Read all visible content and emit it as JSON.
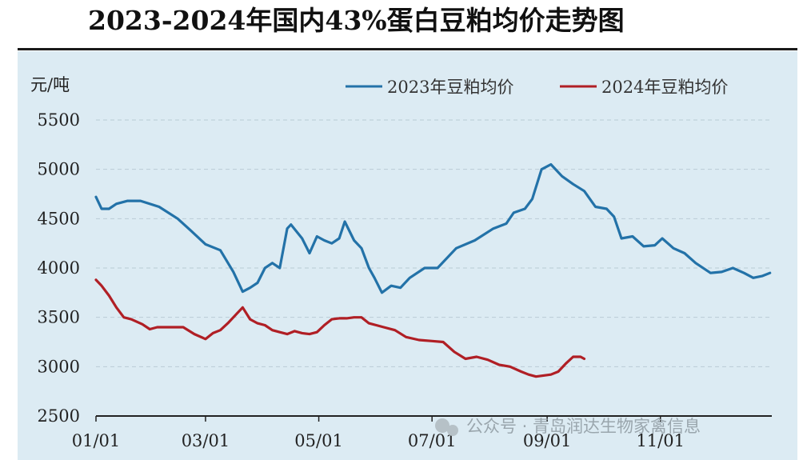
{
  "title": "2023-2024年国内43%蛋白豆粕均价走势图",
  "watermark": "公众号 · 青岛润达生物家禽信息",
  "chart_data": {
    "type": "line",
    "title": "2023-2024年国内43%蛋白豆粕均价走势图",
    "ylabel": "元/吨",
    "xlabel": "",
    "ylim": [
      2500,
      5500
    ],
    "yticks": [
      5500,
      5000,
      4500,
      4000,
      3500,
      3000,
      2500
    ],
    "xticks": [
      "01/01",
      "03/01",
      "05/01",
      "07/01",
      "09/01",
      "11/01"
    ],
    "grid": true,
    "legend_position": "top-right",
    "x_unit": "day of year",
    "series": [
      {
        "name": "2023年豆粕均价",
        "color": "#2372a8",
        "x": [
          1,
          4,
          8,
          12,
          18,
          25,
          35,
          45,
          52,
          60,
          68,
          75,
          80,
          84,
          88,
          92,
          96,
          100,
          104,
          106,
          112,
          116,
          120,
          124,
          128,
          132,
          135,
          140,
          144,
          148,
          151,
          155,
          160,
          165,
          170,
          178,
          185,
          195,
          205,
          215,
          222,
          226,
          232,
          236,
          241,
          246,
          252,
          258,
          264,
          270,
          276,
          280,
          284,
          290,
          296,
          302,
          306,
          312,
          318,
          324,
          332,
          338,
          344,
          350,
          355,
          360,
          364
        ],
        "y": [
          4720,
          4600,
          4600,
          4650,
          4680,
          4680,
          4620,
          4500,
          4380,
          4240,
          4180,
          3960,
          3760,
          3800,
          3850,
          4000,
          4050,
          4000,
          4400,
          4440,
          4300,
          4150,
          4320,
          4280,
          4250,
          4300,
          4470,
          4280,
          4200,
          4000,
          3900,
          3750,
          3820,
          3800,
          3900,
          4000,
          4000,
          4200,
          4280,
          4400,
          4450,
          4560,
          4600,
          4700,
          5000,
          5050,
          4930,
          4850,
          4780,
          4620,
          4600,
          4520,
          4300,
          4320,
          4220,
          4230,
          4300,
          4200,
          4150,
          4050,
          3950,
          3960,
          4000,
          3950,
          3900,
          3920,
          3950
        ]
      },
      {
        "name": "2024年豆粕均价",
        "color": "#b01f25",
        "x": [
          1,
          4,
          8,
          12,
          16,
          20,
          26,
          30,
          34,
          40,
          48,
          54,
          60,
          64,
          68,
          72,
          76,
          80,
          84,
          88,
          92,
          96,
          100,
          104,
          108,
          112,
          116,
          120,
          124,
          128,
          132,
          136,
          140,
          144,
          148,
          152,
          156,
          162,
          168,
          175,
          182,
          188,
          194,
          200,
          206,
          212,
          218,
          224,
          230,
          234,
          238,
          242,
          246,
          250,
          254,
          258,
          262,
          264
        ],
        "y": [
          3880,
          3820,
          3720,
          3600,
          3500,
          3480,
          3430,
          3380,
          3400,
          3400,
          3400,
          3330,
          3280,
          3340,
          3370,
          3440,
          3520,
          3600,
          3480,
          3440,
          3420,
          3370,
          3350,
          3330,
          3360,
          3340,
          3330,
          3350,
          3420,
          3480,
          3490,
          3490,
          3500,
          3500,
          3440,
          3420,
          3400,
          3370,
          3300,
          3270,
          3260,
          3250,
          3150,
          3080,
          3100,
          3070,
          3020,
          3000,
          2950,
          2920,
          2900,
          2910,
          2920,
          2950,
          3030,
          3100,
          3100,
          3080
        ]
      }
    ]
  }
}
